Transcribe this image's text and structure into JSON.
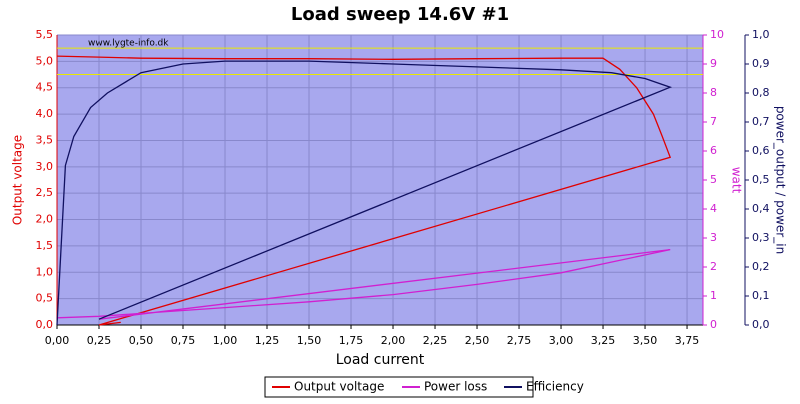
{
  "chart_data": {
    "type": "line",
    "title": "Load sweep 14.6V #1",
    "annotation": "www.lygte-info.dk",
    "xlabel": "Load current",
    "ylabel": "Output voltage",
    "y2label": "watt",
    "y3label": "power_output / power_in",
    "xlim": [
      0,
      3.845
    ],
    "ylim": [
      0,
      5.5
    ],
    "y2lim": [
      0,
      10
    ],
    "y3lim": [
      0,
      1
    ],
    "xticks": [
      {
        "value": 0,
        "label": "0,00"
      },
      {
        "value": 0.25,
        "label": "0,25"
      },
      {
        "value": 0.5,
        "label": "0,50"
      },
      {
        "value": 0.75,
        "label": "0,75"
      },
      {
        "value": 1,
        "label": "1,00"
      },
      {
        "value": 1.25,
        "label": "1,25"
      },
      {
        "value": 1.5,
        "label": "1,50"
      },
      {
        "value": 1.75,
        "label": "1,75"
      },
      {
        "value": 2,
        "label": "2,00"
      },
      {
        "value": 2.25,
        "label": "2,25"
      },
      {
        "value": 2.5,
        "label": "2,50"
      },
      {
        "value": 2.75,
        "label": "2,75"
      },
      {
        "value": 3,
        "label": "3,00"
      },
      {
        "value": 3.25,
        "label": "3,25"
      },
      {
        "value": 3.5,
        "label": "3,50"
      },
      {
        "value": 3.75,
        "label": "3,75"
      }
    ],
    "yticks": [
      {
        "value": 0,
        "label": "0,0"
      },
      {
        "value": 0.5,
        "label": "0,5"
      },
      {
        "value": 1,
        "label": "1,0"
      },
      {
        "value": 1.5,
        "label": "1,5"
      },
      {
        "value": 2,
        "label": "2,0"
      },
      {
        "value": 2.5,
        "label": "2,5"
      },
      {
        "value": 3,
        "label": "3,0"
      },
      {
        "value": 3.5,
        "label": "3,5"
      },
      {
        "value": 4,
        "label": "4,0"
      },
      {
        "value": 4.5,
        "label": "4,5"
      },
      {
        "value": 5,
        "label": "5,0"
      },
      {
        "value": 5.5,
        "label": "5,5"
      }
    ],
    "y2ticks": [
      0,
      1,
      2,
      3,
      4,
      5,
      6,
      7,
      8,
      9,
      10
    ],
    "y3ticks": [
      {
        "value": 0,
        "label": "0,0"
      },
      {
        "value": 0.1,
        "label": "0,1"
      },
      {
        "value": 0.2,
        "label": "0,2"
      },
      {
        "value": 0.3,
        "label": "0,3"
      },
      {
        "value": 0.4,
        "label": "0,4"
      },
      {
        "value": 0.5,
        "label": "0,5"
      },
      {
        "value": 0.6,
        "label": "0,6"
      },
      {
        "value": 0.7,
        "label": "0,7"
      },
      {
        "value": 0.8,
        "label": "0,8"
      },
      {
        "value": 0.9,
        "label": "0,9"
      },
      {
        "value": 1,
        "label": "1,0"
      }
    ],
    "grid": true,
    "hlines": [
      5.25,
      4.75
    ],
    "hline_color": "#e8e800",
    "series": [
      {
        "name": "Output voltage",
        "color": "#e00000",
        "axis": "y",
        "x": [
          0.0,
          0.25,
          0.5,
          1.0,
          1.5,
          2.0,
          2.5,
          3.0,
          3.25,
          3.35,
          3.45,
          3.55,
          3.6,
          3.65,
          0.25,
          0.38
        ],
        "values": [
          5.1,
          5.08,
          5.06,
          5.05,
          5.05,
          5.04,
          5.05,
          5.06,
          5.06,
          4.85,
          4.5,
          4.0,
          3.6,
          3.18,
          0.0,
          0.05
        ]
      },
      {
        "name": "Power loss",
        "color": "#d020d0",
        "axis": "y2",
        "x": [
          0.0,
          0.25,
          0.5,
          1.0,
          1.5,
          2.0,
          2.5,
          3.0,
          3.65,
          0.25
        ],
        "values": [
          0.25,
          0.3,
          0.4,
          0.6,
          0.8,
          1.05,
          1.4,
          1.8,
          2.6,
          0.2
        ]
      },
      {
        "name": "Efficiency",
        "color": "#101060",
        "axis": "y3",
        "x": [
          0.0,
          0.05,
          0.1,
          0.2,
          0.3,
          0.5,
          0.75,
          1.0,
          1.5,
          2.0,
          2.5,
          3.0,
          3.3,
          3.5,
          3.65,
          0.25
        ],
        "values": [
          0.0,
          0.55,
          0.65,
          0.75,
          0.8,
          0.87,
          0.9,
          0.91,
          0.91,
          0.9,
          0.89,
          0.88,
          0.87,
          0.85,
          0.82,
          0.02
        ]
      }
    ]
  }
}
